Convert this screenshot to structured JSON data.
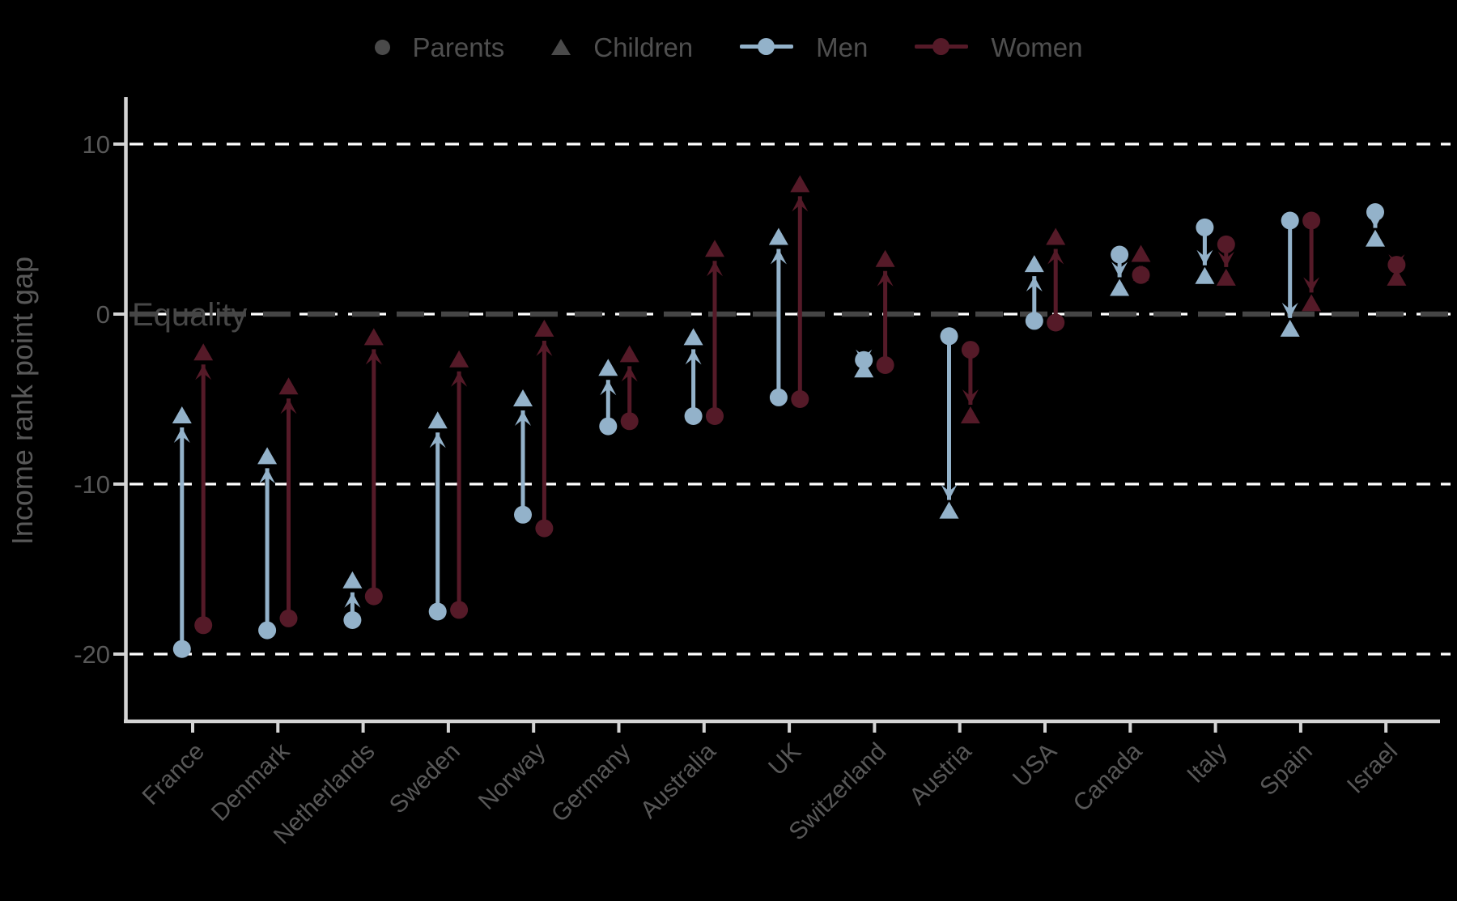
{
  "legend": {
    "parents": "Parents",
    "children": "Children",
    "men": "Men",
    "women": "Women"
  },
  "chart_data": {
    "type": "dumbbell-arrow",
    "title": "",
    "ylabel": "Income rank point gap",
    "xlabel": "",
    "yticks": [
      10,
      0,
      -10,
      -20
    ],
    "ylim": [
      -24.5,
      12.5
    ],
    "grid": "dashed horizontal lines at y = 10, 0, -10, -20",
    "equality_line": 0,
    "equality_label": "Equality",
    "legend_entries": [
      "Parents",
      "Children",
      "Men",
      "Women"
    ],
    "marker_semantics": {
      "circle": "Parents (arrow start)",
      "triangle": "Children (arrow end)",
      "blue": "Men",
      "dark_red": "Women"
    },
    "colors": {
      "men": "#93b2ca",
      "women": "#551a28",
      "neutral_legend": "#4a4a4a",
      "axis_line": "#d4d4d4",
      "tick_text": "#585858",
      "equality_text": "#474747",
      "gridline_white": "#ffffff",
      "equality_dash": "#454545",
      "background": "#000000"
    },
    "categories": [
      "France",
      "Denmark",
      "Netherlands",
      "Sweden",
      "Norway",
      "Germany",
      "Australia",
      "UK",
      "Switzerland",
      "Austria",
      "USA",
      "Canada",
      "Italy",
      "Spain",
      "Israel"
    ],
    "countries": [
      {
        "name": "France",
        "men_parents": -19.7,
        "men_children": -6.0,
        "women_parents": -18.3,
        "women_children": -2.3
      },
      {
        "name": "Denmark",
        "men_parents": -18.6,
        "men_children": -8.4,
        "women_parents": -17.9,
        "women_children": -4.3
      },
      {
        "name": "Netherlands",
        "men_parents": -18.0,
        "men_children": -15.7,
        "women_parents": -16.6,
        "women_children": -1.4
      },
      {
        "name": "Sweden",
        "men_parents": -17.5,
        "men_children": -6.3,
        "women_parents": -17.4,
        "women_children": -2.7
      },
      {
        "name": "Norway",
        "men_parents": -11.8,
        "men_children": -5.0,
        "women_parents": -12.6,
        "women_children": -0.9
      },
      {
        "name": "Germany",
        "men_parents": -6.6,
        "men_children": -3.2,
        "women_parents": -6.3,
        "women_children": -2.4
      },
      {
        "name": "Australia",
        "men_parents": -6.0,
        "men_children": -1.4,
        "women_parents": -6.0,
        "women_children": 3.8
      },
      {
        "name": "UK",
        "men_parents": -4.9,
        "men_children": 4.5,
        "women_parents": -5.0,
        "women_children": 7.6
      },
      {
        "name": "Switzerland",
        "men_parents": -2.7,
        "men_children": -3.3,
        "women_parents": -3.0,
        "women_children": 3.2
      },
      {
        "name": "Austria",
        "men_parents": -1.3,
        "men_children": -11.6,
        "women_parents": -2.1,
        "women_children": -6.0
      },
      {
        "name": "USA",
        "men_parents": -0.4,
        "men_children": 2.9,
        "women_parents": -0.5,
        "women_children": 4.5
      },
      {
        "name": "Canada",
        "men_parents": 3.5,
        "men_children": 1.5,
        "women_parents": 2.3,
        "women_children": 3.5
      },
      {
        "name": "Italy",
        "men_parents": 5.1,
        "men_children": 2.2,
        "women_parents": 4.1,
        "women_children": 2.1
      },
      {
        "name": "Spain",
        "men_parents": 5.5,
        "men_children": -0.9,
        "women_parents": 5.5,
        "women_children": 0.6
      },
      {
        "name": "Israel",
        "men_parents": 6.0,
        "men_children": 4.4,
        "women_parents": 2.9,
        "women_children": 2.1
      }
    ]
  }
}
